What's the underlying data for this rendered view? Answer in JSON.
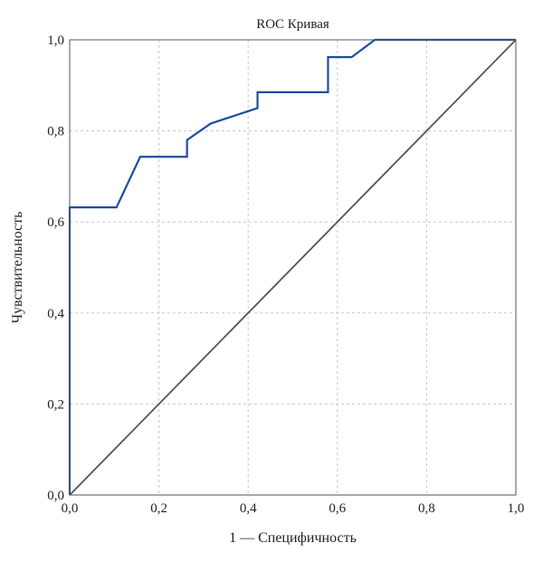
{
  "chart_data": {
    "type": "line",
    "title": "ROC Кривая",
    "xlabel": "1 — Специфичность",
    "ylabel": "Чувствительность",
    "xlim": [
      0,
      1
    ],
    "ylim": [
      0,
      1
    ],
    "xticks": [
      0,
      0.2,
      0.4,
      0.6,
      0.8,
      1.0
    ],
    "yticks": [
      0,
      0.2,
      0.4,
      0.6,
      0.8,
      1.0
    ],
    "xtick_labels": [
      "0,0",
      "0,2",
      "0,4",
      "0,6",
      "0,8",
      "1,0"
    ],
    "ytick_labels": [
      "0,0",
      "0,2",
      "0,4",
      "0,6",
      "0,8",
      "1,0"
    ],
    "grid": true,
    "series": [
      {
        "color": "#1f4e9e",
        "x": [
          0,
          0,
          0.105,
          0.158,
          0.263,
          0.263,
          0.316,
          0.421,
          0.421,
          0.579,
          0.579,
          0.632,
          0.684,
          1.0
        ],
        "y": [
          0,
          0.632,
          0.632,
          0.743,
          0.743,
          0.78,
          0.816,
          0.85,
          0.885,
          0.885,
          0.962,
          0.962,
          1.0,
          1.0
        ]
      },
      {
        "color": "#555555",
        "x": [
          0,
          1
        ],
        "y": [
          0,
          1
        ]
      }
    ]
  }
}
